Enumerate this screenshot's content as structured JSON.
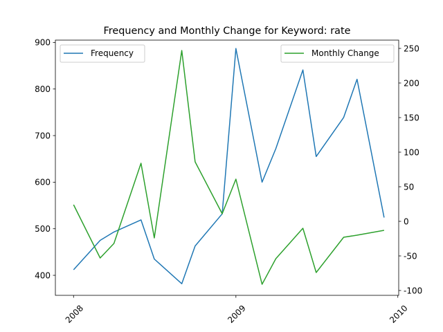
{
  "chart_data": {
    "type": "line",
    "title": "Frequency and Monthly Change for Keyword: rate",
    "x_ticks": [
      "2008",
      "2009",
      "2010"
    ],
    "x_range": [
      "2007-11-21",
      "2010-01-03"
    ],
    "left_axis": {
      "ylim": [
        357,
        905
      ],
      "ticks": [
        400,
        500,
        600,
        700,
        800,
        900
      ]
    },
    "right_axis": {
      "ylim": [
        -107,
        262
      ],
      "ticks": [
        -100,
        -50,
        0,
        50,
        100,
        150,
        200,
        250
      ]
    },
    "legend_left": "upper-left",
    "legend_right": "upper-right",
    "grid": false,
    "series": [
      {
        "name": "Frequency",
        "axis": "left",
        "color": "#1f77b4",
        "x": [
          "2008-01-01",
          "2008-03-01",
          "2008-04-01",
          "2008-06-01",
          "2008-07-01",
          "2008-09-01",
          "2008-10-01",
          "2008-12-01",
          "2009-01-01",
          "2009-03-01",
          "2009-04-01",
          "2009-06-01",
          "2009-07-01",
          "2009-09-01",
          "2009-10-01",
          "2009-12-01"
        ],
        "values": [
          412,
          475,
          493,
          519,
          435,
          382,
          463,
          532,
          887,
          600,
          672,
          841,
          655,
          739,
          821,
          524
        ]
      },
      {
        "name": "Monthly Change",
        "axis": "right",
        "color": "#2ca02c",
        "x": [
          "2008-01-01",
          "2008-03-01",
          "2008-04-01",
          "2008-06-01",
          "2008-07-01",
          "2008-09-01",
          "2008-10-01",
          "2008-12-01",
          "2009-01-01",
          "2009-03-01",
          "2009-04-01",
          "2009-06-01",
          "2009-07-01",
          "2009-09-01",
          "2009-10-01",
          "2009-12-01"
        ],
        "values": [
          24,
          -53,
          -32,
          84,
          -24,
          247,
          86,
          11,
          61,
          -91,
          -54,
          -10,
          -74,
          -23,
          -20,
          -13
        ]
      }
    ]
  }
}
